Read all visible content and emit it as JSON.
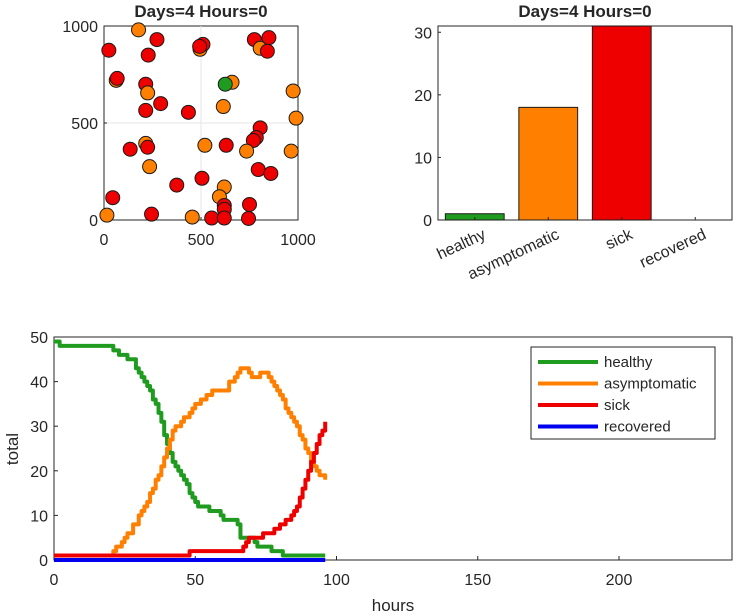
{
  "chart_data": [
    {
      "type": "scatter",
      "title": "Days=4 Hours=0",
      "xlim": [
        0,
        1000
      ],
      "ylim": [
        0,
        1000
      ],
      "xticks": [
        0,
        500,
        1000
      ],
      "yticks": [
        0,
        500,
        1000
      ],
      "grid": true,
      "colors": {
        "healthy": "#1f9c1f",
        "asymptomatic": "#ff8000",
        "sick": "#ee0000"
      },
      "points": [
        {
          "x": 25,
          "y": 875,
          "s": "sick"
        },
        {
          "x": 178,
          "y": 980,
          "s": "asymptomatic"
        },
        {
          "x": 228,
          "y": 850,
          "s": "sick"
        },
        {
          "x": 273,
          "y": 930,
          "s": "sick"
        },
        {
          "x": 495,
          "y": 880,
          "s": "asymptomatic"
        },
        {
          "x": 510,
          "y": 905,
          "s": "sick"
        },
        {
          "x": 493,
          "y": 895,
          "s": "sick"
        },
        {
          "x": 775,
          "y": 930,
          "s": "sick"
        },
        {
          "x": 805,
          "y": 885,
          "s": "asymptomatic"
        },
        {
          "x": 850,
          "y": 940,
          "s": "sick"
        },
        {
          "x": 842,
          "y": 870,
          "s": "sick"
        },
        {
          "x": 63,
          "y": 720,
          "s": "asymptomatic"
        },
        {
          "x": 68,
          "y": 730,
          "s": "sick"
        },
        {
          "x": 215,
          "y": 700,
          "s": "sick"
        },
        {
          "x": 225,
          "y": 655,
          "s": "asymptomatic"
        },
        {
          "x": 292,
          "y": 600,
          "s": "sick"
        },
        {
          "x": 215,
          "y": 565,
          "s": "sick"
        },
        {
          "x": 435,
          "y": 555,
          "s": "sick"
        },
        {
          "x": 660,
          "y": 710,
          "s": "asymptomatic"
        },
        {
          "x": 625,
          "y": 700,
          "s": "healthy"
        },
        {
          "x": 615,
          "y": 585,
          "s": "asymptomatic"
        },
        {
          "x": 975,
          "y": 665,
          "s": "asymptomatic"
        },
        {
          "x": 990,
          "y": 525,
          "s": "asymptomatic"
        },
        {
          "x": 805,
          "y": 475,
          "s": "sick"
        },
        {
          "x": 785,
          "y": 425,
          "s": "sick"
        },
        {
          "x": 770,
          "y": 410,
          "s": "sick"
        },
        {
          "x": 735,
          "y": 355,
          "s": "asymptomatic"
        },
        {
          "x": 965,
          "y": 355,
          "s": "asymptomatic"
        },
        {
          "x": 135,
          "y": 365,
          "s": "sick"
        },
        {
          "x": 215,
          "y": 395,
          "s": "asymptomatic"
        },
        {
          "x": 225,
          "y": 375,
          "s": "sick"
        },
        {
          "x": 235,
          "y": 275,
          "s": "asymptomatic"
        },
        {
          "x": 520,
          "y": 385,
          "s": "asymptomatic"
        },
        {
          "x": 630,
          "y": 385,
          "s": "sick"
        },
        {
          "x": 795,
          "y": 260,
          "s": "sick"
        },
        {
          "x": 860,
          "y": 240,
          "s": "sick"
        },
        {
          "x": 375,
          "y": 180,
          "s": "sick"
        },
        {
          "x": 505,
          "y": 215,
          "s": "sick"
        },
        {
          "x": 620,
          "y": 170,
          "s": "asymptomatic"
        },
        {
          "x": 595,
          "y": 120,
          "s": "asymptomatic"
        },
        {
          "x": 45,
          "y": 115,
          "s": "sick"
        },
        {
          "x": 620,
          "y": 75,
          "s": "sick"
        },
        {
          "x": 620,
          "y": 55,
          "s": "sick"
        },
        {
          "x": 750,
          "y": 80,
          "s": "sick"
        },
        {
          "x": 15,
          "y": 25,
          "s": "asymptomatic"
        },
        {
          "x": 245,
          "y": 30,
          "s": "sick"
        },
        {
          "x": 455,
          "y": 15,
          "s": "asymptomatic"
        },
        {
          "x": 555,
          "y": 10,
          "s": "sick"
        },
        {
          "x": 620,
          "y": 10,
          "s": "sick"
        },
        {
          "x": 745,
          "y": 8,
          "s": "sick"
        }
      ]
    },
    {
      "type": "bar",
      "title": "Days=4 Hours=0",
      "categories": [
        "healthy",
        "asymptomatic",
        "sick",
        "recovered"
      ],
      "values": [
        1,
        18,
        31,
        0
      ],
      "colors": [
        "#1f9c1f",
        "#ff8000",
        "#ee0000",
        "#0000ee"
      ],
      "ylim": [
        0,
        31
      ],
      "yticks": [
        0,
        10,
        20,
        30
      ]
    },
    {
      "type": "line",
      "xlabel": "hours",
      "ylabel": "total",
      "xlim": [
        0,
        240
      ],
      "ylim": [
        0,
        50
      ],
      "xticks": [
        0,
        50,
        100,
        150,
        200
      ],
      "yticks": [
        0,
        10,
        20,
        30,
        40,
        50
      ],
      "legend": "top-right",
      "series": [
        {
          "name": "healthy",
          "color": "#1f9c1f",
          "x": [
            0,
            1,
            2,
            20,
            21,
            23,
            24,
            26,
            27,
            29,
            30,
            31,
            32,
            33,
            34,
            35,
            36,
            37,
            38,
            39,
            40,
            41,
            42,
            43,
            44,
            45,
            46,
            47,
            48,
            49,
            50,
            51,
            53,
            55,
            57,
            59,
            60,
            62,
            64,
            65,
            66,
            70,
            71,
            72,
            76,
            77,
            80,
            81,
            82,
            83,
            96
          ],
          "y": [
            49,
            49,
            48,
            48,
            47,
            46,
            46,
            45,
            45,
            43,
            42,
            41,
            40,
            39,
            38,
            36,
            35,
            33,
            31,
            28,
            26,
            24,
            22,
            21,
            20,
            19,
            18,
            17,
            15,
            14,
            13,
            12,
            12,
            11,
            11,
            10,
            9,
            9,
            9,
            8,
            5,
            5,
            4,
            3,
            3,
            2,
            2,
            1,
            1,
            1,
            1
          ]
        },
        {
          "name": "asymptomatic",
          "color": "#ff8000",
          "x": [
            0,
            20,
            21,
            22,
            24,
            25,
            26,
            28,
            30,
            31,
            32,
            33,
            34,
            35,
            36,
            37,
            38,
            39,
            40,
            41,
            42,
            43,
            44,
            45,
            46,
            47,
            48,
            49,
            50,
            51,
            52,
            54,
            56,
            58,
            60,
            62,
            64,
            65,
            66,
            67,
            68,
            69,
            70,
            72,
            73,
            75,
            76,
            77,
            78,
            79,
            80,
            81,
            82,
            83,
            84,
            85,
            86,
            87,
            88,
            89,
            90,
            91,
            92,
            93,
            94,
            95,
            96
          ],
          "y": [
            1,
            1,
            2,
            3,
            4,
            5,
            6,
            8,
            10,
            11,
            12,
            13,
            15,
            16,
            18,
            19,
            21,
            23,
            25,
            27,
            29,
            30,
            30,
            31,
            32,
            32,
            33,
            34,
            35,
            35,
            36,
            37,
            38,
            38,
            38,
            40,
            41,
            42,
            43,
            43,
            43,
            42,
            41,
            41,
            42,
            42,
            41,
            40,
            39,
            38,
            37,
            36,
            34,
            33,
            32,
            31,
            30,
            28,
            27,
            25,
            24,
            22,
            21,
            20,
            19,
            19,
            18
          ]
        },
        {
          "name": "sick",
          "color": "#ee0000",
          "x": [
            0,
            47,
            48,
            66,
            67,
            68,
            69,
            70,
            72,
            74,
            76,
            78,
            80,
            82,
            84,
            85,
            86,
            87,
            88,
            89,
            90,
            91,
            92,
            93,
            94,
            95,
            96
          ],
          "y": [
            1,
            1,
            2,
            2,
            3,
            4,
            5,
            5,
            5,
            6,
            6,
            7,
            8,
            9,
            10,
            11,
            12,
            14,
            16,
            18,
            20,
            22,
            24,
            26,
            28,
            29,
            31
          ]
        },
        {
          "name": "recovered",
          "color": "#0000ee",
          "x": [
            0,
            96
          ],
          "y": [
            0,
            0
          ]
        }
      ]
    }
  ]
}
